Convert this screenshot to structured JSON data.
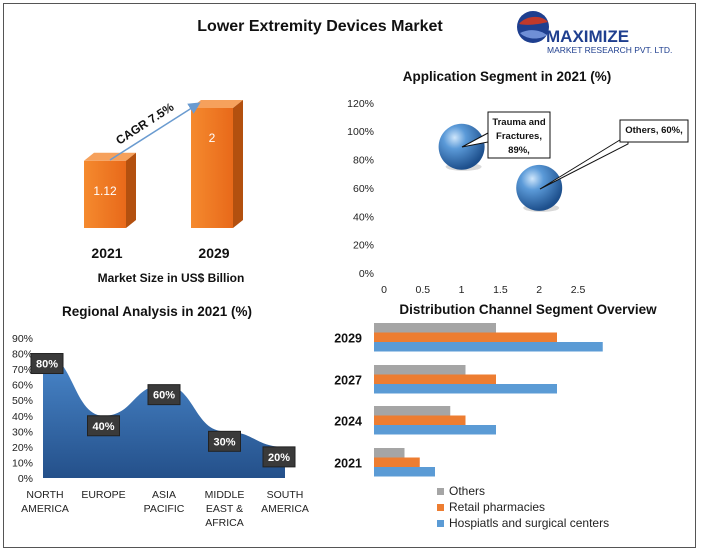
{
  "title": "Lower Extremity Devices Market",
  "logo": {
    "name": "MAXIMIZE",
    "sub": "MARKET RESEARCH PVT. LTD."
  },
  "chart_data": [
    {
      "type": "bar",
      "categories": [
        "2021",
        "2029"
      ],
      "values": [
        1.12,
        2
      ],
      "value_labels": [
        "1.12",
        "2"
      ],
      "xlabel": "Market Size in US$ Billion",
      "annotation": "CAGR 7.5%",
      "color": "#f07a1e"
    },
    {
      "type": "scatter",
      "title": "Application Segment in 2021 (%)",
      "points": [
        {
          "x": 1,
          "y": 89,
          "label": [
            "Trauma and",
            "Fractures,",
            "89%,"
          ]
        },
        {
          "x": 2,
          "y": 60,
          "label": [
            "Others, 60%,"
          ]
        }
      ],
      "xlim": [
        0,
        2.5
      ],
      "ylim": [
        0,
        120
      ],
      "xticks": [
        "0",
        "0.5",
        "1",
        "1.5",
        "2",
        "2.5"
      ],
      "yticks": [
        "0%",
        "20%",
        "40%",
        "60%",
        "80%",
        "100%",
        "120%"
      ],
      "color": "#3d7fc7"
    },
    {
      "type": "area",
      "title": "Regional Analysis in 2021 (%)",
      "categories": [
        [
          "NORTH",
          "AMERICA"
        ],
        [
          "EUROPE"
        ],
        [
          "ASIA",
          "PACIFIC"
        ],
        [
          "MIDDLE",
          "EAST &",
          "AFRICA"
        ],
        [
          "SOUTH",
          "AMERICA"
        ]
      ],
      "values": [
        80,
        40,
        60,
        30,
        20
      ],
      "value_labels": [
        "80%",
        "40%",
        "60%",
        "30%",
        "20%"
      ],
      "ylim": [
        0,
        90
      ],
      "yticks": [
        "0%",
        "10%",
        "20%",
        "30%",
        "40%",
        "50%",
        "60%",
        "70%",
        "80%",
        "90%"
      ],
      "color": "#3b76b8"
    },
    {
      "type": "bar",
      "orientation": "horizontal",
      "title": "Distribution Channel Segment Overview",
      "categories": [
        "2029",
        "2027",
        "2024",
        "2021"
      ],
      "series": [
        {
          "name": "Others",
          "values": [
            40,
            30,
            25,
            10
          ],
          "color": "#a5a5a5"
        },
        {
          "name": "Retail pharmacies",
          "values": [
            60,
            40,
            30,
            15
          ],
          "color": "#ed7d31"
        },
        {
          "name": "Hospiatls and surgical centers",
          "values": [
            75,
            60,
            40,
            20
          ],
          "color": "#5b9bd5"
        }
      ],
      "xlim": [
        0,
        100
      ],
      "legend": "bottom"
    }
  ]
}
